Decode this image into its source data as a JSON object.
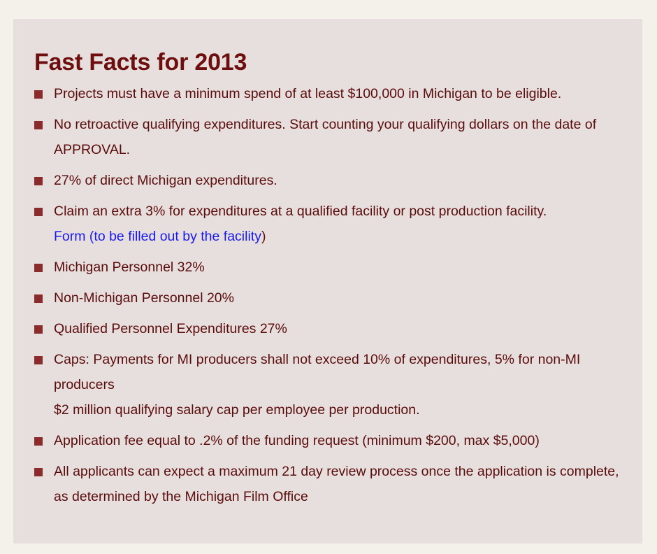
{
  "title": "Fast Facts for 2013",
  "items": [
    {
      "text": "Projects must have a minimum spend of at least $100,000 in Michigan to be eligible."
    },
    {
      "text": "No retroactive qualifying expenditures. Start counting your qualifying dollars on the date of APPROVAL."
    },
    {
      "text": "27% of direct Michigan expenditures."
    },
    {
      "text": "Claim an extra 3% for expenditures at a qualified facility or post production facility.",
      "link_text": "Form (to be filled out by the facility",
      "link_suffix": ")"
    },
    {
      "text": "Michigan Personnel 32%"
    },
    {
      "text": "Non-Michigan Personnel 20%"
    },
    {
      "text": "Qualified Personnel Expenditures 27%"
    },
    {
      "text": "Caps: Payments for MI producers shall not exceed 10% of expenditures, 5% for non-MI producers",
      "extra": "$2 million qualifying salary cap per employee per production."
    },
    {
      "text": "Application fee equal to .2% of the funding request (minimum $200, max $5,000)"
    },
    {
      "text": "All applicants can expect a maximum 21 day review process once the application is complete, as determined by the Michigan Film Office"
    }
  ],
  "colors": {
    "page_background": "#f4f1ea",
    "panel_background": "#e7dfdd",
    "title": "#6e0f0f",
    "text": "#5a0c0c",
    "bullet": "#8b2b2b",
    "link": "#1a1aee"
  }
}
